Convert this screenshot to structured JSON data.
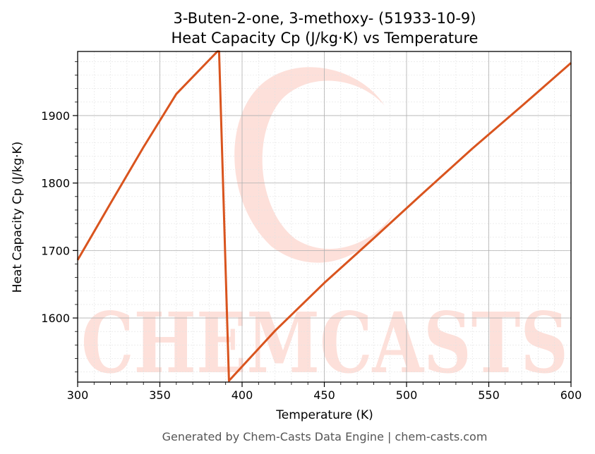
{
  "chart_data": {
    "type": "line",
    "title_line1": "3-Buten-2-one, 3-methoxy- (51933-10-9)",
    "title_line2": "Heat Capacity Cp (J/kg·K) vs Temperature",
    "xlabel": "Temperature (K)",
    "ylabel": "Heat Capacity Cp (J/kg·K)",
    "xlim": [
      300,
      600
    ],
    "ylim": [
      1505,
      1995
    ],
    "xticks": [
      300,
      350,
      400,
      450,
      500,
      550,
      600
    ],
    "yticks": [
      1600,
      1700,
      1800,
      1900
    ],
    "grid": true,
    "line_color": "#d9541e",
    "series": [
      {
        "name": "",
        "x": [
          300,
          320,
          340,
          360,
          385,
          386,
          392,
          420,
          450,
          480,
          510,
          540,
          570,
          600
        ],
        "y": [
          1686,
          1770,
          1853,
          1932,
          1995,
          1995,
          1507,
          1581,
          1652,
          1718,
          1785,
          1851,
          1914,
          1978
        ]
      }
    ],
    "watermark_text": "CHEMCASTS"
  },
  "footer": "Generated by Chem-Casts Data Engine | chem-casts.com"
}
